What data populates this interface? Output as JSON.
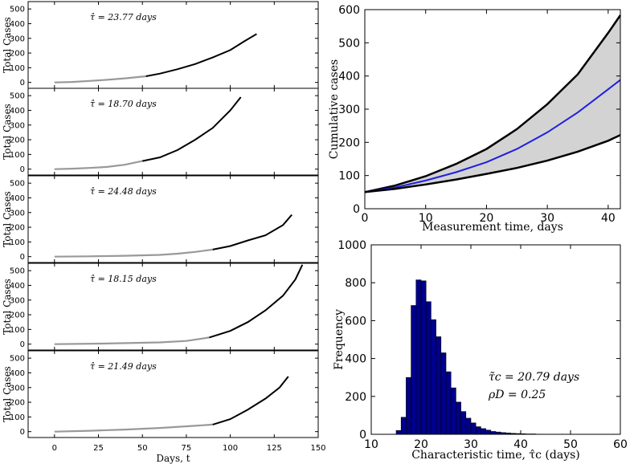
{
  "chart_data": [
    {
      "type": "line",
      "panel": "left-stack",
      "xlabel": "Days, t",
      "ylabel": "Total Cases",
      "xlim": [
        -15,
        150
      ],
      "ylim": [
        -40,
        550
      ],
      "xticks": [
        0,
        25,
        50,
        75,
        100,
        125,
        150
      ],
      "yticks": [
        0,
        100,
        200,
        300,
        400,
        500
      ],
      "subplots": [
        {
          "annotation": "τ̂ = 23.77 days",
          "early": {
            "x": [
              0,
              10,
              20,
              30,
              40,
              52
            ],
            "y": [
              0,
              3,
              10,
              18,
              28,
              42
            ]
          },
          "late": {
            "x": [
              52,
              60,
              70,
              80,
              90,
              100,
              108,
              115
            ],
            "y": [
              42,
              60,
              90,
              125,
              170,
              220,
              280,
              330
            ]
          }
        },
        {
          "annotation": "τ̂ = 18.70 days",
          "early": {
            "x": [
              0,
              10,
              20,
              30,
              40,
              50
            ],
            "y": [
              0,
              3,
              8,
              15,
              30,
              55
            ]
          },
          "late": {
            "x": [
              50,
              60,
              70,
              80,
              90,
              100,
              106
            ],
            "y": [
              55,
              80,
              130,
              200,
              280,
              400,
              490
            ]
          }
        },
        {
          "annotation": "τ̂ = 24.48 days",
          "early": {
            "x": [
              0,
              20,
              40,
              60,
              70,
              80,
              90
            ],
            "y": [
              0,
              2,
              6,
              12,
              20,
              32,
              48
            ]
          },
          "late": {
            "x": [
              90,
              100,
              110,
              120,
              130,
              135
            ],
            "y": [
              48,
              72,
              110,
              145,
              215,
              285
            ]
          }
        },
        {
          "annotation": "τ̂ = 18.15 days",
          "early": {
            "x": [
              0,
              30,
              60,
              75,
              88
            ],
            "y": [
              0,
              4,
              12,
              22,
              45
            ]
          },
          "late": {
            "x": [
              88,
              100,
              110,
              120,
              130,
              137,
              141
            ],
            "y": [
              45,
              90,
              150,
              230,
              330,
              440,
              540
            ]
          }
        },
        {
          "annotation": "τ̂ = 21.49 days",
          "early": {
            "x": [
              0,
              20,
              40,
              60,
              80,
              90
            ],
            "y": [
              0,
              6,
              14,
              25,
              40,
              48
            ]
          },
          "late": {
            "x": [
              90,
              100,
              110,
              120,
              128,
              133
            ],
            "y": [
              48,
              85,
              150,
              225,
              300,
              375
            ]
          }
        }
      ]
    },
    {
      "type": "area",
      "panel": "top-right",
      "xlabel": "Measurement time, days",
      "ylabel": "Cumulative cases",
      "xlim": [
        0,
        42
      ],
      "ylim": [
        0,
        600
      ],
      "xticks": [
        0,
        10,
        20,
        30,
        40
      ],
      "yticks": [
        0,
        100,
        200,
        300,
        400,
        500,
        600
      ],
      "series": [
        {
          "name": "upper",
          "color": "#000000",
          "x": [
            0,
            5,
            10,
            15,
            20,
            25,
            30,
            35,
            40,
            42
          ],
          "y": [
            50,
            70,
            98,
            135,
            180,
            240,
            315,
            405,
            530,
            583
          ]
        },
        {
          "name": "median",
          "color": "#1f1fe0",
          "x": [
            0,
            5,
            10,
            15,
            20,
            25,
            30,
            35,
            40,
            42
          ],
          "y": [
            50,
            64,
            85,
            110,
            140,
            180,
            230,
            290,
            360,
            388
          ]
        },
        {
          "name": "lower",
          "color": "#000000",
          "x": [
            0,
            5,
            10,
            15,
            20,
            25,
            30,
            35,
            40,
            42
          ],
          "y": [
            50,
            60,
            73,
            88,
            105,
            123,
            145,
            172,
            205,
            222
          ]
        }
      ],
      "fill_color": "#d3d3d3"
    },
    {
      "type": "bar",
      "panel": "bottom-right",
      "xlabel": "Characteristic time, τ̂c (days)",
      "ylabel": "Frequency",
      "xlim": [
        10,
        60
      ],
      "ylim": [
        0,
        1000
      ],
      "xticks": [
        10,
        20,
        30,
        40,
        50,
        60
      ],
      "yticks": [
        0,
        200,
        400,
        600,
        800,
        1000
      ],
      "bin_width": 1,
      "bin_starts": [
        15,
        16,
        17,
        18,
        19,
        20,
        21,
        22,
        23,
        24,
        25,
        26,
        27,
        28,
        29,
        30,
        31,
        32,
        33,
        34,
        35,
        36,
        37,
        38,
        39,
        40,
        41,
        42,
        43
      ],
      "values": [
        20,
        90,
        300,
        680,
        815,
        810,
        700,
        605,
        515,
        430,
        330,
        245,
        170,
        120,
        85,
        60,
        40,
        30,
        22,
        15,
        12,
        9,
        7,
        5,
        4,
        3,
        2,
        2,
        1
      ],
      "bar_color": "#00008b",
      "annotations": [
        "τ̃c = 20.79 days",
        "ρD = 0.25"
      ]
    }
  ]
}
